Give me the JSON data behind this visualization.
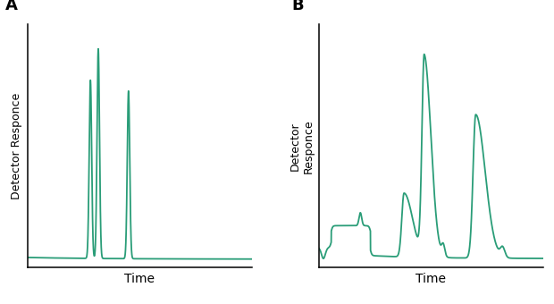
{
  "line_color": "#2a9d78",
  "line_width": 1.3,
  "background_color": "#ffffff",
  "label_A": "A",
  "label_B": "B",
  "ylabel_A": "Detector Responce",
  "ylabel_B": "Detector\nResponce",
  "xlabel": "Time",
  "label_fontsize": 10,
  "panel_label_fontsize": 13,
  "panel_label_weight": "bold",
  "peaks_A": [
    {
      "mu": 2.8,
      "sigma": 0.055,
      "amp": 0.85
    },
    {
      "mu": 3.15,
      "sigma": 0.055,
      "amp": 1.0
    },
    {
      "mu": 4.5,
      "sigma": 0.055,
      "amp": 0.8
    }
  ],
  "peaks_B": [
    {
      "mu": 3.8,
      "sigma_l": 0.1,
      "sigma_r": 0.38,
      "amp": 0.32
    },
    {
      "mu": 4.7,
      "sigma_l": 0.1,
      "sigma_r": 0.3,
      "amp": 1.0
    },
    {
      "mu": 7.0,
      "sigma_l": 0.12,
      "sigma_r": 0.42,
      "amp": 0.72
    }
  ]
}
